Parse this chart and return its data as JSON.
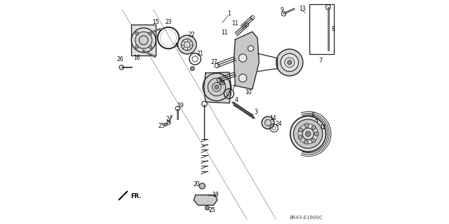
{
  "bg_color": "#ffffff",
  "diagram_code": "8R43-E1900C",
  "dgray": "#222222",
  "lgray": "#aaaaaa",
  "line_color": "#888888"
}
